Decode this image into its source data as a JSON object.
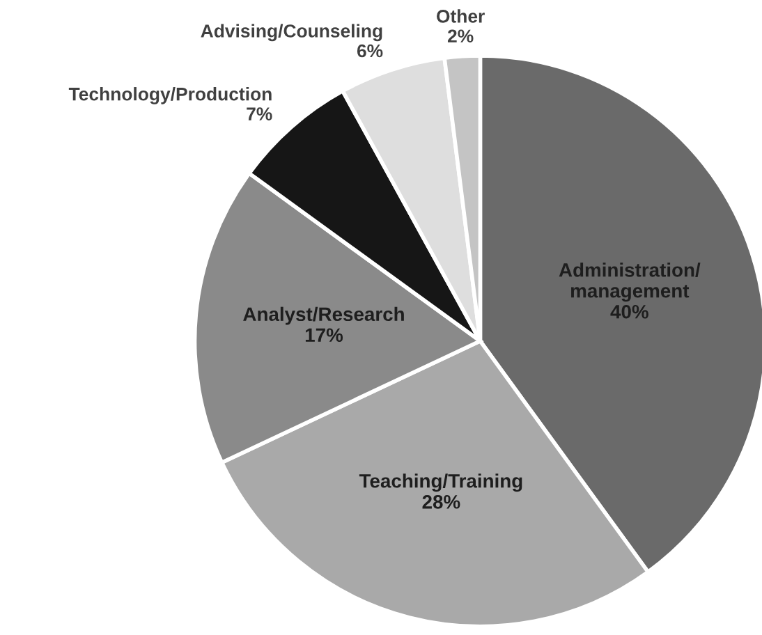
{
  "chart_data": {
    "type": "pie",
    "categories": [
      "Administration/management",
      "Teaching/Training",
      "Analyst/Research",
      "Technology/Production",
      "Advising/Counseling",
      "Other"
    ],
    "values": [
      40,
      28,
      17,
      7,
      6,
      2
    ],
    "colors": [
      "#6a6a6a",
      "#a9a9a9",
      "#8a8a8a",
      "#161616",
      "#dedede",
      "#c4c4c4"
    ],
    "value_labels": [
      "40%",
      "28%",
      "17%",
      "7%",
      "6%",
      "2%"
    ],
    "legend": false
  }
}
